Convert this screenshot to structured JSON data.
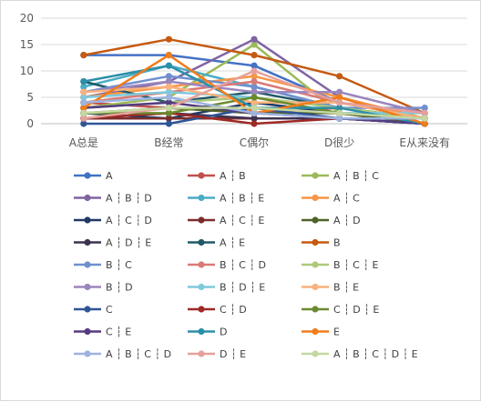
{
  "chart_data": {
    "type": "line",
    "title": "",
    "xlabel": "",
    "ylabel": "",
    "categories": [
      "A总是",
      "B经常",
      "C偶尔",
      "D很少",
      "E从来没有"
    ],
    "ylim": [
      0,
      20
    ],
    "yticks": [
      0,
      5,
      10,
      15,
      20
    ],
    "grid": true,
    "legend_position": "bottom",
    "series": [
      {
        "name": "A",
        "color": "#4472C4",
        "values": [
          13,
          13,
          11,
          4,
          1
        ]
      },
      {
        "name": "A ┆ B",
        "color": "#C0504D",
        "values": [
          4,
          3,
          2,
          3,
          1
        ]
      },
      {
        "name": "A ┆ B ┆ C",
        "color": "#9BBB59",
        "values": [
          3,
          5,
          15,
          2,
          1
        ]
      },
      {
        "name": "A ┆ B ┆ D",
        "color": "#8064A2",
        "values": [
          5,
          8,
          16,
          5,
          1
        ]
      },
      {
        "name": "A ┆ B ┆ E",
        "color": "#4BACC6",
        "values": [
          7,
          11,
          7,
          3,
          1
        ]
      },
      {
        "name": "A ┆ C",
        "color": "#F79646",
        "values": [
          5,
          7,
          9,
          5,
          1
        ]
      },
      {
        "name": "A ┆ C ┆ D",
        "color": "#203864",
        "values": [
          2,
          1,
          4,
          2,
          0
        ]
      },
      {
        "name": "A ┆ C ┆ E",
        "color": "#7B2C2C",
        "values": [
          1,
          1,
          1,
          1,
          0
        ]
      },
      {
        "name": "A ┆ D",
        "color": "#4F6228",
        "values": [
          2,
          3,
          2,
          2,
          0
        ]
      },
      {
        "name": "A ┆ D ┆ E",
        "color": "#3F3151",
        "values": [
          1,
          2,
          1,
          1,
          0
        ]
      },
      {
        "name": "A ┆ E",
        "color": "#215968",
        "values": [
          8,
          4,
          6,
          3,
          1
        ]
      },
      {
        "name": "B",
        "color": "#C55A11",
        "values": [
          13,
          16,
          13,
          9,
          2
        ]
      },
      {
        "name": "B ┆ C",
        "color": "#6F8FCF",
        "values": [
          6,
          9,
          7,
          3,
          3
        ]
      },
      {
        "name": "B ┆ C ┆ D",
        "color": "#D97A76",
        "values": [
          4,
          6,
          8,
          4,
          2
        ]
      },
      {
        "name": "B ┆ C ┆ E",
        "color": "#AFC97A",
        "values": [
          3,
          4,
          5,
          3,
          1
        ]
      },
      {
        "name": "B ┆ D",
        "color": "#9A86BE",
        "values": [
          6,
          8,
          6,
          6,
          2
        ]
      },
      {
        "name": "B ┆ D ┆ E",
        "color": "#7FC9DC",
        "values": [
          5,
          6,
          5,
          2,
          2
        ]
      },
      {
        "name": "B ┆ E",
        "color": "#F9B27D",
        "values": [
          6,
          7,
          4,
          4,
          1
        ]
      },
      {
        "name": "C",
        "color": "#2E5597",
        "values": [
          0,
          0,
          3,
          1,
          0
        ]
      },
      {
        "name": "C ┆ D",
        "color": "#9E2A26",
        "values": [
          1,
          2,
          0,
          1,
          1
        ]
      },
      {
        "name": "C ┆ D ┆ E",
        "color": "#6A8A2E",
        "values": [
          2,
          2,
          5,
          2,
          1
        ]
      },
      {
        "name": "C ┆ E",
        "color": "#553C82",
        "values": [
          3,
          4,
          2,
          1,
          0
        ]
      },
      {
        "name": "D",
        "color": "#2C8FA8",
        "values": [
          8,
          11,
          3,
          3,
          0
        ]
      },
      {
        "name": "E",
        "color": "#F07C1A",
        "values": [
          3,
          13,
          2,
          5,
          0
        ]
      },
      {
        "name": "A ┆ B ┆ C ┆ D",
        "color": "#9DB3E0",
        "values": [
          4,
          5,
          2,
          1,
          1
        ]
      },
      {
        "name": "D ┆ E",
        "color": "#E6A09C",
        "values": [
          1,
          3,
          10,
          4,
          2
        ]
      },
      {
        "name": "A ┆ B ┆ C ┆ D ┆ E",
        "color": "#C4D7A0",
        "values": [
          2,
          3,
          3,
          2,
          1
        ]
      }
    ]
  }
}
